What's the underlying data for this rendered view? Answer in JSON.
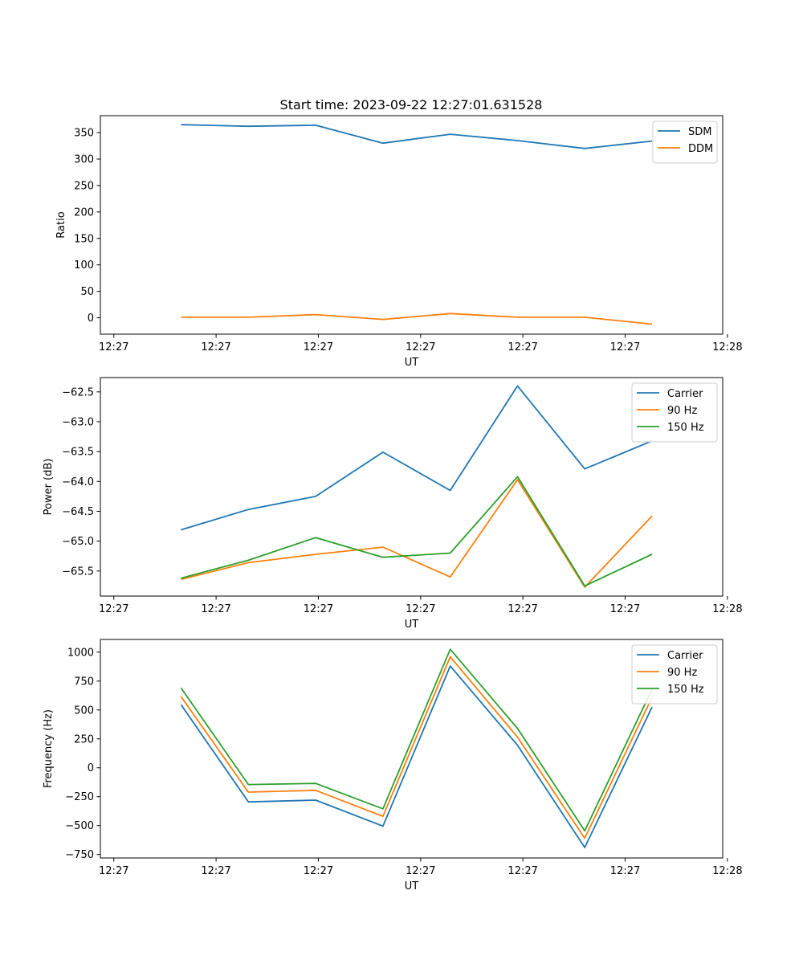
{
  "figure": {
    "title": "Start time: 2023-09-22 12:27:01.631528"
  },
  "chart_data": [
    {
      "type": "line",
      "title": "Start time: 2023-09-22 12:27:01.631528",
      "xlabel": "UT",
      "ylabel": "Ratio",
      "x": [
        1,
        2,
        3,
        4,
        5,
        6,
        7,
        8
      ],
      "xlim": [
        -0.2,
        9.05
      ],
      "xticks": [
        0,
        1.52,
        3.04,
        4.56,
        6.08,
        7.6,
        9.12
      ],
      "xticklabels": [
        "12:27",
        "12:27",
        "12:27",
        "12:27",
        "12:27",
        "12:27",
        "12:28"
      ],
      "ylim": [
        -31,
        382
      ],
      "yticks": [
        0,
        50,
        100,
        150,
        200,
        250,
        300,
        350
      ],
      "yticklabels": [
        "0",
        "50",
        "100",
        "150",
        "200",
        "250",
        "300",
        "350"
      ],
      "legend_position": "top-right",
      "series": [
        {
          "name": "SDM",
          "color": "#1f77b4",
          "values": [
            365,
            362,
            364,
            330,
            347,
            335,
            320,
            334
          ]
        },
        {
          "name": "DDM",
          "color": "#ff7f0e",
          "values": [
            1,
            1,
            6,
            -3,
            8,
            1,
            1,
            -12
          ]
        }
      ]
    },
    {
      "type": "line",
      "title": "",
      "xlabel": "UT",
      "ylabel": "Power (dB)",
      "x": [
        1,
        2,
        3,
        4,
        5,
        6,
        7,
        8
      ],
      "xlim": [
        -0.2,
        9.05
      ],
      "xticks": [
        0,
        1.52,
        3.04,
        4.56,
        6.08,
        7.6,
        9.12
      ],
      "xticklabels": [
        "12:27",
        "12:27",
        "12:27",
        "12:27",
        "12:27",
        "12:27",
        "12:28"
      ],
      "ylim": [
        -65.92,
        -62.26
      ],
      "yticks": [
        -65.5,
        -65.0,
        -64.5,
        -64.0,
        -63.5,
        -63.0,
        -62.5
      ],
      "yticklabels": [
        "−65.5",
        "−65.0",
        "−64.5",
        "−64.0",
        "−63.5",
        "−63.0",
        "−62.5"
      ],
      "legend_position": "top-right",
      "series": [
        {
          "name": "Carrier",
          "color": "#1f77b4",
          "values": [
            -64.81,
            -64.47,
            -64.25,
            -63.51,
            -64.15,
            -62.4,
            -63.79,
            -63.32
          ]
        },
        {
          "name": "90 Hz",
          "color": "#ff7f0e",
          "values": [
            -65.64,
            -65.36,
            -65.22,
            -65.1,
            -65.6,
            -63.97,
            -65.77,
            -64.58
          ]
        },
        {
          "name": "150 Hz",
          "color": "#2ca02c",
          "values": [
            -65.62,
            -65.32,
            -64.94,
            -65.27,
            -65.2,
            -63.92,
            -65.75,
            -65.22
          ]
        }
      ]
    },
    {
      "type": "line",
      "title": "",
      "xlabel": "UT",
      "ylabel": "Frequency (Hz)",
      "x": [
        1,
        2,
        3,
        4,
        5,
        6,
        7,
        8
      ],
      "xlim": [
        -0.2,
        9.05
      ],
      "xticks": [
        0,
        1.52,
        3.04,
        4.56,
        6.08,
        7.6,
        9.12
      ],
      "xticklabels": [
        "12:27",
        "12:27",
        "12:27",
        "12:27",
        "12:27",
        "12:27",
        "12:28"
      ],
      "ylim": [
        -780,
        1110
      ],
      "yticks": [
        -750,
        -500,
        -250,
        0,
        250,
        500,
        750,
        1000
      ],
      "yticklabels": [
        "−750",
        "−500",
        "−250",
        "0",
        "250",
        "500",
        "750",
        "1000"
      ],
      "legend_position": "top-right",
      "series": [
        {
          "name": "Carrier",
          "color": "#1f77b4",
          "values": [
            545,
            -295,
            -280,
            -505,
            880,
            195,
            -690,
            525
          ]
        },
        {
          "name": "90 Hz",
          "color": "#ff7f0e",
          "values": [
            615,
            -210,
            -195,
            -420,
            960,
            265,
            -610,
            610
          ]
        },
        {
          "name": "150 Hz",
          "color": "#2ca02c",
          "values": [
            690,
            -145,
            -135,
            -355,
            1025,
            340,
            -545,
            680
          ]
        }
      ]
    }
  ]
}
